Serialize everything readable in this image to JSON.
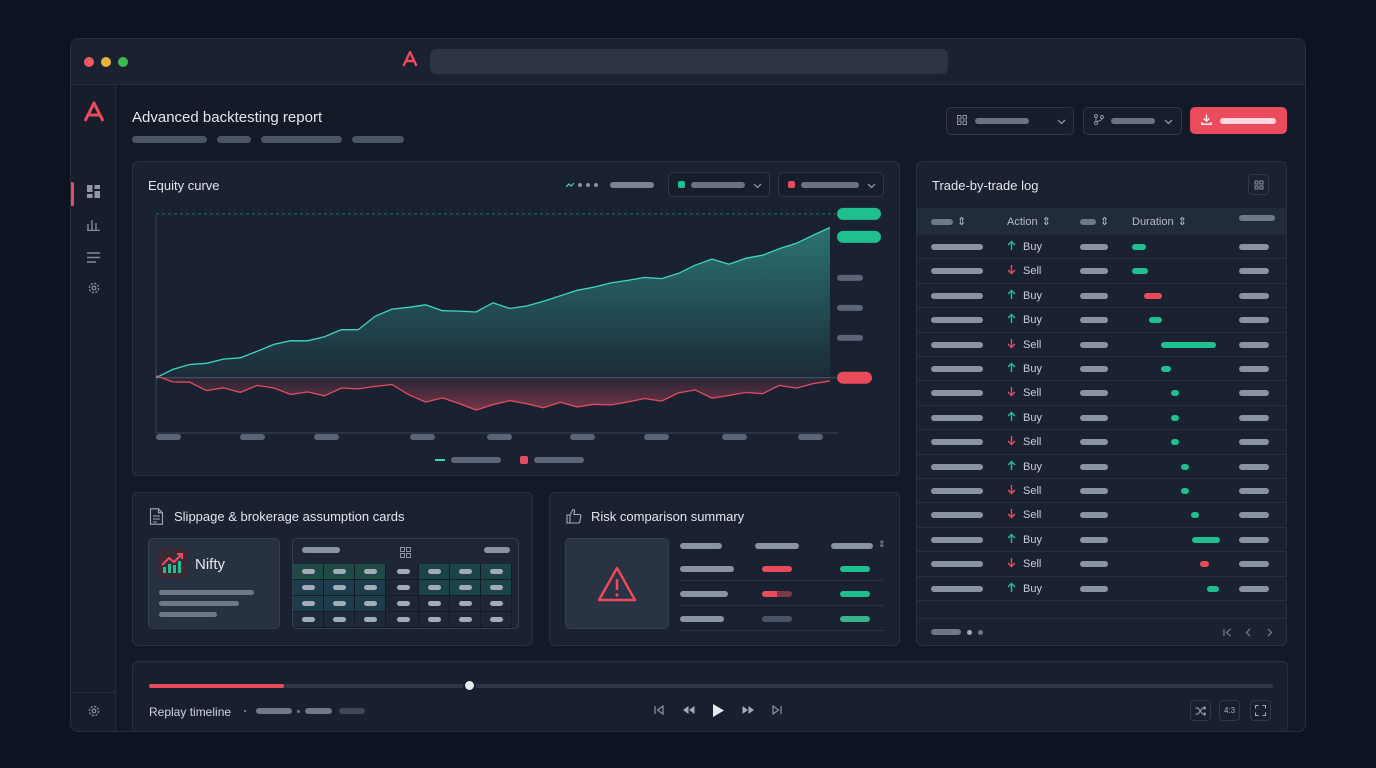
{
  "app": {
    "logo_letter": "A",
    "accent": "#ec4b5e",
    "positive_color": "#1fbf8f",
    "negative_color": "#e94b5a"
  },
  "header": {
    "title": "Advanced backtesting report"
  },
  "sidebar": {
    "items": [
      {
        "icon": "dashboard-icon",
        "active": true
      },
      {
        "icon": "bar-chart-icon",
        "active": false
      },
      {
        "icon": "list-icon",
        "active": false
      },
      {
        "icon": "settings-icon",
        "active": false
      }
    ],
    "bottom_icon": "settings-icon"
  },
  "equity": {
    "title": "Equity curve",
    "chart_data": {
      "type": "area",
      "x": [
        0,
        1,
        2,
        3,
        4,
        5,
        6,
        7,
        8,
        9,
        10,
        11,
        12,
        13,
        14,
        15,
        16,
        17,
        18,
        19,
        20,
        21,
        22,
        23,
        24,
        25,
        26,
        27,
        28,
        29,
        30,
        31,
        32,
        33,
        34,
        35,
        36,
        37,
        38,
        39,
        40
      ],
      "series": [
        {
          "values": [
            0.0,
            0.04,
            0.07,
            0.09,
            0.13,
            0.14,
            0.17,
            0.2,
            0.22,
            0.23,
            0.27,
            0.32,
            0.31,
            0.38,
            0.42,
            0.44,
            0.47,
            0.44,
            0.43,
            0.41,
            0.46,
            0.43,
            0.46,
            0.5,
            0.53,
            0.55,
            0.56,
            0.59,
            0.62,
            0.65,
            0.64,
            0.66,
            0.7,
            0.74,
            0.72,
            0.77,
            0.79,
            0.82,
            0.84,
            0.89,
            0.95
          ],
          "color": "#3fd6c0"
        },
        {
          "values": [
            0.0,
            -0.04,
            -0.03,
            -0.07,
            -0.05,
            -0.09,
            -0.06,
            -0.08,
            -0.11,
            -0.08,
            -0.1,
            -0.06,
            -0.08,
            -0.07,
            -0.05,
            -0.1,
            -0.14,
            -0.12,
            -0.17,
            -0.22,
            -0.18,
            -0.14,
            -0.15,
            -0.18,
            -0.16,
            -0.2,
            -0.18,
            -0.17,
            -0.14,
            -0.12,
            -0.15,
            -0.11,
            -0.09,
            -0.13,
            -0.1,
            -0.08,
            -0.1,
            -0.06,
            -0.08,
            -0.04,
            -0.01
          ],
          "color": "#e24c63"
        }
      ],
      "ylim": [
        -0.3,
        1.0
      ],
      "grid": false,
      "legend": "bottom-center"
    }
  },
  "trade_log": {
    "title": "Trade-by-trade log",
    "columns": [
      "Action",
      "Duration"
    ],
    "rows": [
      {
        "action": "Buy",
        "dir": "up",
        "dur_start": 0.0,
        "dur_len": 0.15,
        "color": "#1fbf8f"
      },
      {
        "action": "Sell",
        "dir": "down",
        "dur_start": 0.0,
        "dur_len": 0.17,
        "color": "#1fbf8f"
      },
      {
        "action": "Buy",
        "dir": "up",
        "dur_start": 0.13,
        "dur_len": 0.19,
        "color": "#e94b5a"
      },
      {
        "action": "Buy",
        "dir": "up",
        "dur_start": 0.18,
        "dur_len": 0.14,
        "color": "#1fbf8f"
      },
      {
        "action": "Sell",
        "dir": "down",
        "dur_start": 0.3,
        "dur_len": 0.58,
        "color": "#1fbf8f"
      },
      {
        "action": "Buy",
        "dir": "up",
        "dur_start": 0.3,
        "dur_len": 0.11,
        "color": "#1fbf8f"
      },
      {
        "action": "Sell",
        "dir": "down",
        "dur_start": 0.41,
        "dur_len": 0.08,
        "color": "#1fbf8f"
      },
      {
        "action": "Buy",
        "dir": "up",
        "dur_start": 0.41,
        "dur_len": 0.08,
        "color": "#1fbf8f"
      },
      {
        "action": "Sell",
        "dir": "down",
        "dur_start": 0.41,
        "dur_len": 0.08,
        "color": "#1fbf8f"
      },
      {
        "action": "Buy",
        "dir": "up",
        "dur_start": 0.52,
        "dur_len": 0.08,
        "color": "#1fbf8f"
      },
      {
        "action": "Sell",
        "dir": "down",
        "dur_start": 0.52,
        "dur_len": 0.08,
        "color": "#1fbf8f"
      },
      {
        "action": "Sell",
        "dir": "down",
        "dur_start": 0.62,
        "dur_len": 0.08,
        "color": "#1fbf8f"
      },
      {
        "action": "Buy",
        "dir": "up",
        "dur_start": 0.63,
        "dur_len": 0.3,
        "color": "#1fbf8f"
      },
      {
        "action": "Sell",
        "dir": "down",
        "dur_start": 0.72,
        "dur_len": 0.09,
        "color": "#e94b5a"
      },
      {
        "action": "Buy",
        "dir": "up",
        "dur_start": 0.79,
        "dur_len": 0.13,
        "color": "#1fbf8f"
      }
    ]
  },
  "slippage": {
    "title": "Slippage & brokerage assumption cards",
    "index_name": "Nifty"
  },
  "risk": {
    "title": "Risk comparison summary"
  },
  "replay": {
    "label": "Replay timeline",
    "progress": 0.12,
    "position": 0.285
  }
}
